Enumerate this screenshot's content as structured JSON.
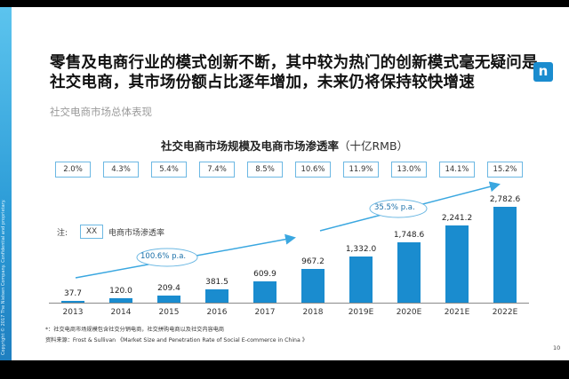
{
  "slide": {
    "headline_line1": "零售及电商行业的模式创新不断，其中较为热门的创新模式毫无疑问是",
    "headline_line2": "社交电商，其市场份额占比逐年增加，未来仍将保持较快增速",
    "subtitle": "社交电商市场总体表现",
    "logo": "n",
    "page_number": "10",
    "side_text": "Copyright © 2017 The Nielsen Company. Confidential and proprietary.",
    "footnote": "*：社交电商市场规模包含社交分销电商，社交拼购电商以及社交内容电商",
    "source": "资料来源：Frost & Sullivan 《Market Size and Penetration Rate of Social E-commerce in China 》"
  },
  "legend": {
    "prefix": "注:",
    "box": "XX",
    "text": "电商市场渗透率"
  },
  "colors": {
    "bar": "#1a8ccf",
    "accent": "#6cb8e3",
    "arrow": "#3aa7e0"
  },
  "chart_data": {
    "type": "bar",
    "title": "社交电商市场规模及电商市场渗透率",
    "unit": "（十亿RMB）",
    "categories": [
      "2013",
      "2014",
      "2015",
      "2016",
      "2017",
      "2018",
      "2019E",
      "2020E",
      "2021E",
      "2022E"
    ],
    "values": [
      37.7,
      120.0,
      209.4,
      381.5,
      609.9,
      967.2,
      1332.0,
      1748.6,
      2241.2,
      2782.6
    ],
    "value_labels": [
      "37.7",
      "120.0",
      "209.4",
      "381.5",
      "609.9",
      "967.2",
      "1,332.0",
      "1,748.6",
      "2,241.2",
      "2,782.6"
    ],
    "penetration_rates": [
      "2.0%",
      "4.3%",
      "5.4%",
      "7.4%",
      "8.5%",
      "10.6%",
      "11.9%",
      "13.0%",
      "14.1%",
      "15.2%"
    ],
    "annotations": [
      "100.6% p.a.",
      "35.5% p.a."
    ],
    "ylim": [
      0,
      2782.6
    ]
  }
}
